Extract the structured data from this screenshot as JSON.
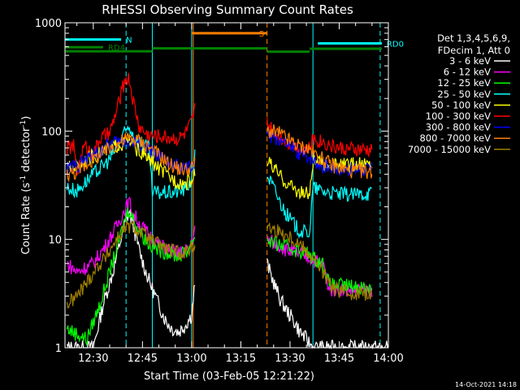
{
  "chart_data": {
    "type": "line",
    "title": "RHESSI Observing Summary Count Rates",
    "xlabel": "Start Time (03-Feb-05 12:21:22)",
    "ylabel": "Count Rate (s⁻¹ detector⁻¹)",
    "ylabel_parts": [
      "Count Rate (s",
      "-1",
      " detector",
      "-1",
      ")"
    ],
    "yscale": "log",
    "xlim": [
      21.37,
      120
    ],
    "ylim": [
      1,
      1000
    ],
    "xtick_values": [
      30,
      45,
      60,
      75,
      90,
      105,
      120
    ],
    "xticks": [
      "12:30",
      "12:45",
      "13:00",
      "13:15",
      "13:30",
      "13:45",
      "14:00"
    ],
    "ytick_values": [
      1,
      10,
      100,
      1000
    ],
    "yticks": [
      "1",
      "10",
      "100",
      "1000"
    ],
    "x_units": "minutes after 12:00",
    "legend": {
      "title_lines": [
        "Det 1,3,4,5,6,9,",
        "FDecim 1, Att 0"
      ],
      "position": "right"
    },
    "gaps": [
      [
        61,
        83
      ]
    ],
    "series": [
      {
        "name": "3 - 6 keV",
        "color": "#ffffff",
        "points": [
          [
            22,
            1
          ],
          [
            30,
            1
          ],
          [
            33,
            2.5
          ],
          [
            36,
            5
          ],
          [
            38,
            9
          ],
          [
            40,
            15
          ],
          [
            41,
            18
          ],
          [
            42,
            14
          ],
          [
            44,
            8
          ],
          [
            46,
            5
          ],
          [
            48,
            3.5
          ],
          [
            50,
            2.5
          ],
          [
            52,
            1.8
          ],
          [
            54,
            1.5
          ],
          [
            56,
            1.4
          ],
          [
            58,
            1.6
          ],
          [
            60,
            2
          ],
          [
            61,
            4
          ],
          [
            83,
            6
          ],
          [
            85,
            4
          ],
          [
            87,
            2.8
          ],
          [
            89,
            2.2
          ],
          [
            91,
            1.8
          ],
          [
            93,
            1.4
          ],
          [
            95,
            1.2
          ],
          [
            97,
            1
          ],
          [
            100,
            1
          ],
          [
            120,
            1
          ]
        ]
      },
      {
        "name": "6 - 12 keV",
        "color": "#ff00ff",
        "points": [
          [
            22,
            6
          ],
          [
            25,
            5
          ],
          [
            30,
            6
          ],
          [
            34,
            9
          ],
          [
            37,
            13
          ],
          [
            40,
            20
          ],
          [
            41,
            22
          ],
          [
            42,
            18
          ],
          [
            44,
            14
          ],
          [
            47,
            11
          ],
          [
            50,
            9
          ],
          [
            53,
            8
          ],
          [
            56,
            7.5
          ],
          [
            59,
            8
          ],
          [
            61,
            12
          ],
          [
            83,
            10
          ],
          [
            86,
            9
          ],
          [
            89,
            8
          ],
          [
            92,
            7.5
          ],
          [
            95,
            7
          ],
          [
            97,
            6.5
          ],
          [
            100,
            6
          ],
          [
            102,
            3.5
          ],
          [
            115,
            3.4
          ]
        ]
      },
      {
        "name": "12 - 25 keV",
        "color": "#00ff00",
        "points": [
          [
            22,
            1.5
          ],
          [
            28,
            1.2
          ],
          [
            32,
            2.5
          ],
          [
            35,
            5
          ],
          [
            38,
            10
          ],
          [
            40,
            17
          ],
          [
            41,
            19
          ],
          [
            42,
            16
          ],
          [
            44,
            12
          ],
          [
            47,
            9
          ],
          [
            50,
            8
          ],
          [
            53,
            7.5
          ],
          [
            56,
            7
          ],
          [
            59,
            8
          ],
          [
            61,
            11
          ],
          [
            83,
            10
          ],
          [
            86,
            9
          ],
          [
            89,
            8.5
          ],
          [
            92,
            8
          ],
          [
            95,
            7.5
          ],
          [
            98,
            6.5
          ],
          [
            100,
            6
          ],
          [
            102,
            3.8
          ],
          [
            115,
            3.6
          ]
        ]
      },
      {
        "name": "25 - 50 keV",
        "color": "#00ffff",
        "points": [
          [
            22,
            30
          ],
          [
            25,
            28
          ],
          [
            28,
            35
          ],
          [
            32,
            45
          ],
          [
            35,
            55
          ],
          [
            38,
            80
          ],
          [
            40,
            100
          ],
          [
            41,
            110
          ],
          [
            42,
            95
          ],
          [
            44,
            80
          ],
          [
            46,
            72
          ],
          [
            47,
            70
          ],
          [
            48,
            27
          ],
          [
            54,
            27
          ],
          [
            58,
            29
          ],
          [
            60,
            36
          ],
          [
            61,
            60
          ],
          [
            83,
            40
          ],
          [
            85,
            30
          ],
          [
            87,
            22
          ],
          [
            89,
            17
          ],
          [
            91,
            14
          ],
          [
            93,
            12
          ],
          [
            95,
            11.5
          ],
          [
            96,
            12
          ],
          [
            97,
            30
          ],
          [
            100,
            28
          ],
          [
            105,
            26
          ],
          [
            110,
            26
          ],
          [
            115,
            27
          ]
        ]
      },
      {
        "name": "50 - 100 keV",
        "color": "#ffff00",
        "points": [
          [
            22,
            45
          ],
          [
            25,
            48
          ],
          [
            28,
            55
          ],
          [
            32,
            62
          ],
          [
            36,
            72
          ],
          [
            40,
            78
          ],
          [
            41,
            80
          ],
          [
            42,
            75
          ],
          [
            44,
            65
          ],
          [
            47,
            55
          ],
          [
            50,
            45
          ],
          [
            53,
            38
          ],
          [
            56,
            34
          ],
          [
            58,
            33
          ],
          [
            60,
            35
          ],
          [
            61,
            40
          ],
          [
            83,
            55
          ],
          [
            85,
            45
          ],
          [
            87,
            38
          ],
          [
            89,
            33
          ],
          [
            91,
            30
          ],
          [
            93,
            27
          ],
          [
            96,
            26
          ],
          [
            97,
            52
          ],
          [
            100,
            50
          ],
          [
            105,
            48
          ],
          [
            110,
            49
          ],
          [
            115,
            50
          ]
        ]
      },
      {
        "name": "100 - 300 keV",
        "color": "#ff0000",
        "points": [
          [
            22,
            70
          ],
          [
            24,
            72
          ],
          [
            25,
            40
          ],
          [
            27,
            70
          ],
          [
            28,
            72
          ],
          [
            30,
            60
          ],
          [
            32,
            85
          ],
          [
            35,
            95
          ],
          [
            37,
            150
          ],
          [
            39,
            250
          ],
          [
            40,
            310
          ],
          [
            41,
            300
          ],
          [
            42,
            200
          ],
          [
            44,
            110
          ],
          [
            46,
            95
          ],
          [
            48,
            90
          ],
          [
            50,
            90
          ],
          [
            53,
            88
          ],
          [
            56,
            85
          ],
          [
            58,
            95
          ],
          [
            60,
            120
          ],
          [
            61,
            160
          ],
          [
            83,
            120
          ],
          [
            85,
            95
          ],
          [
            87,
            90
          ],
          [
            89,
            80
          ],
          [
            91,
            75
          ],
          [
            93,
            70
          ],
          [
            96,
            68
          ],
          [
            97,
            85
          ],
          [
            100,
            80
          ],
          [
            103,
            72
          ],
          [
            108,
            68
          ],
          [
            115,
            66
          ]
        ]
      },
      {
        "name": "300 - 800 keV",
        "color": "#0000ff",
        "points": [
          [
            22,
            45
          ],
          [
            25,
            48
          ],
          [
            28,
            55
          ],
          [
            32,
            65
          ],
          [
            36,
            78
          ],
          [
            40,
            82
          ],
          [
            42,
            80
          ],
          [
            44,
            76
          ],
          [
            47,
            68
          ],
          [
            50,
            58
          ],
          [
            53,
            50
          ],
          [
            56,
            46
          ],
          [
            58,
            45
          ],
          [
            60,
            46
          ],
          [
            61,
            52
          ],
          [
            83,
            90
          ],
          [
            85,
            88
          ],
          [
            87,
            82
          ],
          [
            89,
            75
          ],
          [
            91,
            68
          ],
          [
            93,
            62
          ],
          [
            96,
            58
          ],
          [
            98,
            52
          ],
          [
            100,
            48
          ],
          [
            105,
            45
          ],
          [
            110,
            44
          ],
          [
            115,
            44
          ]
        ]
      },
      {
        "name": "800 - 7000 keV",
        "color": "#ff8000",
        "points": [
          [
            22,
            40
          ],
          [
            25,
            42
          ],
          [
            28,
            50
          ],
          [
            32,
            60
          ],
          [
            36,
            72
          ],
          [
            40,
            85
          ],
          [
            42,
            85
          ],
          [
            44,
            82
          ],
          [
            47,
            72
          ],
          [
            50,
            60
          ],
          [
            53,
            50
          ],
          [
            56,
            45
          ],
          [
            58,
            44
          ],
          [
            60,
            46
          ],
          [
            61,
            50
          ],
          [
            83,
            100
          ],
          [
            85,
            98
          ],
          [
            87,
            95
          ],
          [
            89,
            85
          ],
          [
            91,
            78
          ],
          [
            93,
            72
          ],
          [
            96,
            68
          ],
          [
            98,
            60
          ],
          [
            100,
            55
          ],
          [
            103,
            48
          ],
          [
            108,
            43
          ],
          [
            115,
            42
          ]
        ]
      },
      {
        "name": "7000 - 15000 keV",
        "color": "#a08000",
        "points": [
          [
            22,
            2.5
          ],
          [
            25,
            3
          ],
          [
            28,
            4
          ],
          [
            31,
            5.5
          ],
          [
            34,
            7
          ],
          [
            37,
            10
          ],
          [
            40,
            13
          ],
          [
            42,
            13
          ],
          [
            44,
            12
          ],
          [
            47,
            10
          ],
          [
            50,
            9
          ],
          [
            53,
            8
          ],
          [
            56,
            7.5
          ],
          [
            59,
            7.8
          ],
          [
            61,
            9
          ],
          [
            83,
            13
          ],
          [
            86,
            12
          ],
          [
            89,
            11
          ],
          [
            92,
            9.5
          ],
          [
            95,
            8
          ],
          [
            98,
            6
          ],
          [
            100,
            5
          ],
          [
            103,
            3.5
          ],
          [
            108,
            3.2
          ],
          [
            115,
            3.2
          ]
        ]
      }
    ],
    "annotations": {
      "flags": [
        {
          "label": "N",
          "color": "#00ffff",
          "level": 700,
          "segments": [
            [
              21.37,
              38.5
            ]
          ]
        },
        {
          "label": "RD0",
          "color": "#00ffff",
          "level": 645,
          "segments": [
            [
              98.5,
              118
            ]
          ]
        },
        {
          "label": "RD4",
          "color": "#008000",
          "level": 595,
          "segments": [
            [
              21.37,
              33
            ]
          ]
        },
        {
          "label": "",
          "color": "#008000",
          "level": 545,
          "segments": [
            [
              21.37,
              48
            ]
          ]
        },
        {
          "label": "",
          "color": "#008000",
          "level": 580,
          "segments": [
            [
              48,
              83
            ]
          ]
        },
        {
          "label": "",
          "color": "#008000",
          "level": 540,
          "segments": [
            [
              83,
              96
            ]
          ]
        },
        {
          "label": "",
          "color": "#008000",
          "level": 575,
          "segments": [
            [
              96,
              118
            ]
          ]
        },
        {
          "label": "S",
          "color": "#ff8000",
          "level": 800,
          "segments": [
            [
              60,
              83
            ]
          ]
        }
      ],
      "vlines": [
        {
          "x": 40,
          "color": "#00ffff",
          "dash": true
        },
        {
          "x": 48,
          "color": "#00ffff",
          "dash": false
        },
        {
          "x": 60,
          "color": "#00ffff",
          "dash": false
        },
        {
          "x": 60.5,
          "color": "#ff8000",
          "dash": false
        },
        {
          "x": 83,
          "color": "#ff8000",
          "dash": true
        },
        {
          "x": 97,
          "color": "#00ffff",
          "dash": false
        },
        {
          "x": 117.5,
          "color": "#00ffff",
          "dash": true
        }
      ]
    },
    "timestamp": "14-Oct-2021 14:18"
  }
}
